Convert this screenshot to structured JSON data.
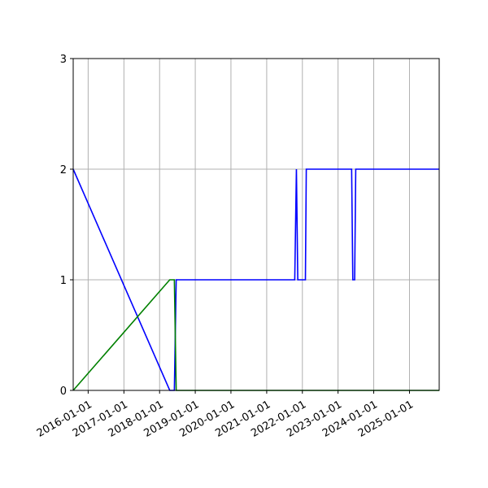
{
  "chart_data": {
    "type": "line",
    "title": "",
    "xlabel": "",
    "ylabel": "",
    "x_axis_type": "date",
    "xlim": [
      "2015-08-01",
      "2025-11-01"
    ],
    "ylim": [
      0,
      3
    ],
    "grid": true,
    "x_ticks": [
      "2016-01-01",
      "2017-01-01",
      "2018-01-01",
      "2019-01-01",
      "2020-01-01",
      "2021-01-01",
      "2022-01-01",
      "2023-01-01",
      "2024-01-01",
      "2025-01-01"
    ],
    "y_ticks": [
      0,
      1,
      2,
      3
    ],
    "series": [
      {
        "color": "#0000ff",
        "points": [
          [
            "2015-08-01",
            2
          ],
          [
            "2018-04-15",
            0
          ],
          [
            "2018-06-01",
            0
          ],
          [
            "2018-06-20",
            1
          ],
          [
            "2021-10-15",
            1
          ],
          [
            "2021-11-01",
            2
          ],
          [
            "2021-11-15",
            1
          ],
          [
            "2022-02-01",
            1
          ],
          [
            "2022-02-10",
            2
          ],
          [
            "2023-05-20",
            2
          ],
          [
            "2023-06-01",
            1
          ],
          [
            "2023-06-20",
            1
          ],
          [
            "2023-07-01",
            2
          ],
          [
            "2025-11-01",
            2
          ]
        ]
      },
      {
        "color": "#008000",
        "points": [
          [
            "2015-08-01",
            0
          ],
          [
            "2018-04-15",
            1
          ],
          [
            "2018-06-01",
            1
          ],
          [
            "2018-06-20",
            0
          ],
          [
            "2025-11-01",
            0
          ]
        ]
      }
    ]
  }
}
